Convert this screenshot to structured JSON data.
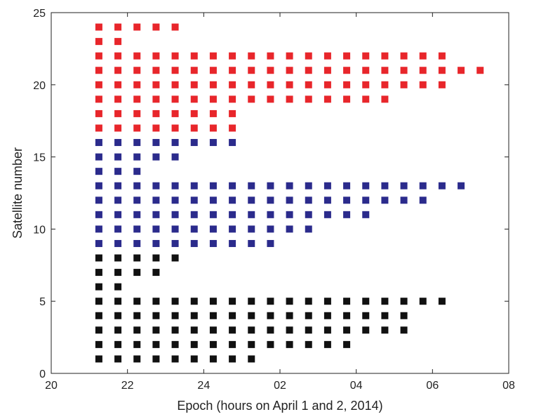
{
  "chart_data": {
    "type": "scatter",
    "title": "",
    "xlabel": "Epoch (hours on April 1 and 2, 2014)",
    "ylabel": "Satellite number",
    "xlim": [
      20,
      32
    ],
    "ylim": [
      0,
      25
    ],
    "x_ticks": [
      {
        "value": 20,
        "label": "20"
      },
      {
        "value": 22,
        "label": "22"
      },
      {
        "value": 24,
        "label": "24"
      },
      {
        "value": 26,
        "label": "02"
      },
      {
        "value": 28,
        "label": "04"
      },
      {
        "value": 30,
        "label": "06"
      },
      {
        "value": 32,
        "label": "08"
      }
    ],
    "y_ticks": [
      {
        "value": 0,
        "label": "0"
      },
      {
        "value": 5,
        "label": "5"
      },
      {
        "value": 10,
        "label": "10"
      },
      {
        "value": 15,
        "label": "15"
      },
      {
        "value": 20,
        "label": "20"
      },
      {
        "value": 25,
        "label": "25"
      }
    ],
    "grid": false,
    "legend": null,
    "marker": "square",
    "epoch_start": 21.25,
    "epoch_step": 0.5,
    "series": [
      {
        "color": "#111111",
        "rows": [
          {
            "satellite": 1,
            "epochs": [
              21.25,
              21.75,
              22.25,
              22.75,
              23.25,
              23.75,
              24.25,
              24.75,
              25.25
            ]
          },
          {
            "satellite": 2,
            "epochs": [
              21.25,
              21.75,
              22.25,
              22.75,
              23.25,
              23.75,
              24.25,
              24.75,
              25.25,
              25.75,
              26.25,
              26.75,
              27.25,
              27.75
            ]
          },
          {
            "satellite": 3,
            "epochs": [
              21.25,
              21.75,
              22.25,
              22.75,
              23.25,
              23.75,
              24.25,
              24.75,
              25.25,
              25.75,
              26.25,
              26.75,
              27.25,
              27.75,
              28.25,
              28.75,
              29.25
            ]
          },
          {
            "satellite": 4,
            "epochs": [
              21.25,
              21.75,
              22.25,
              22.75,
              23.25,
              23.75,
              24.25,
              24.75,
              25.25,
              25.75,
              26.25,
              26.75,
              27.25,
              27.75,
              28.25,
              28.75,
              29.25
            ]
          },
          {
            "satellite": 5,
            "epochs": [
              21.25,
              21.75,
              22.25,
              22.75,
              23.25,
              23.75,
              24.25,
              24.75,
              25.25,
              25.75,
              26.25,
              26.75,
              27.25,
              27.75,
              28.25,
              28.75,
              29.25,
              29.75,
              30.25
            ]
          },
          {
            "satellite": 6,
            "epochs": [
              21.25,
              21.75
            ]
          },
          {
            "satellite": 7,
            "epochs": [
              21.25,
              21.75,
              22.25,
              22.75
            ]
          },
          {
            "satellite": 8,
            "epochs": [
              21.25,
              21.75,
              22.25,
              22.75,
              23.25
            ]
          }
        ]
      },
      {
        "color": "#2b2b8c",
        "rows": [
          {
            "satellite": 9,
            "epochs": [
              21.25,
              21.75,
              22.25,
              22.75,
              23.25,
              23.75,
              24.25,
              24.75,
              25.25,
              25.75
            ]
          },
          {
            "satellite": 10,
            "epochs": [
              21.25,
              21.75,
              22.25,
              22.75,
              23.25,
              23.75,
              24.25,
              24.75,
              25.25,
              25.75,
              26.25,
              26.75
            ]
          },
          {
            "satellite": 11,
            "epochs": [
              21.25,
              21.75,
              22.25,
              22.75,
              23.25,
              23.75,
              24.25,
              24.75,
              25.25,
              25.75,
              26.25,
              26.75,
              27.25,
              27.75,
              28.25
            ]
          },
          {
            "satellite": 12,
            "epochs": [
              21.25,
              21.75,
              22.25,
              22.75,
              23.25,
              23.75,
              24.25,
              24.75,
              25.25,
              25.75,
              26.25,
              26.75,
              27.25,
              27.75,
              28.25,
              28.75,
              29.25,
              29.75
            ]
          },
          {
            "satellite": 13,
            "epochs": [
              21.25,
              21.75,
              22.25,
              22.75,
              23.25,
              23.75,
              24.25,
              24.75,
              25.25,
              25.75,
              26.25,
              26.75,
              27.25,
              27.75,
              28.25,
              28.75,
              29.25,
              29.75,
              30.25,
              30.75
            ]
          },
          {
            "satellite": 14,
            "epochs": [
              21.25,
              21.75,
              22.25
            ]
          },
          {
            "satellite": 15,
            "epochs": [
              21.25,
              21.75,
              22.25,
              22.75,
              23.25
            ]
          },
          {
            "satellite": 16,
            "epochs": [
              21.25,
              21.75,
              22.25,
              22.75,
              23.25,
              23.75,
              24.25,
              24.75
            ]
          }
        ]
      },
      {
        "color": "#e8262b",
        "rows": [
          {
            "satellite": 17,
            "epochs": [
              21.25,
              21.75,
              22.25,
              22.75,
              23.25,
              23.75,
              24.25,
              24.75
            ]
          },
          {
            "satellite": 18,
            "epochs": [
              21.25,
              21.75,
              22.25,
              22.75,
              23.25,
              23.75,
              24.25,
              24.75
            ]
          },
          {
            "satellite": 19,
            "epochs": [
              21.25,
              21.75,
              22.25,
              22.75,
              23.25,
              23.75,
              24.25,
              24.75,
              25.25,
              25.75,
              26.25,
              26.75,
              27.25,
              27.75,
              28.25,
              28.75
            ]
          },
          {
            "satellite": 20,
            "epochs": [
              21.25,
              21.75,
              22.25,
              22.75,
              23.25,
              23.75,
              24.25,
              24.75,
              25.25,
              25.75,
              26.25,
              26.75,
              27.25,
              27.75,
              28.25,
              28.75,
              29.25,
              29.75,
              30.25
            ]
          },
          {
            "satellite": 21,
            "epochs": [
              21.25,
              21.75,
              22.25,
              22.75,
              23.25,
              23.75,
              24.25,
              24.75,
              25.25,
              25.75,
              26.25,
              26.75,
              27.25,
              27.75,
              28.25,
              28.75,
              29.25,
              29.75,
              30.25,
              30.75,
              31.25
            ]
          },
          {
            "satellite": 22,
            "epochs": [
              21.25,
              21.75,
              22.25,
              22.75,
              23.25,
              23.75,
              24.25,
              24.75,
              25.25,
              25.75,
              26.25,
              26.75,
              27.25,
              27.75,
              28.25,
              28.75,
              29.25,
              29.75,
              30.25
            ]
          },
          {
            "satellite": 23,
            "epochs": [
              21.25,
              21.75
            ]
          },
          {
            "satellite": 24,
            "epochs": [
              21.25,
              21.75,
              22.25,
              22.75,
              23.25
            ]
          }
        ]
      }
    ]
  }
}
